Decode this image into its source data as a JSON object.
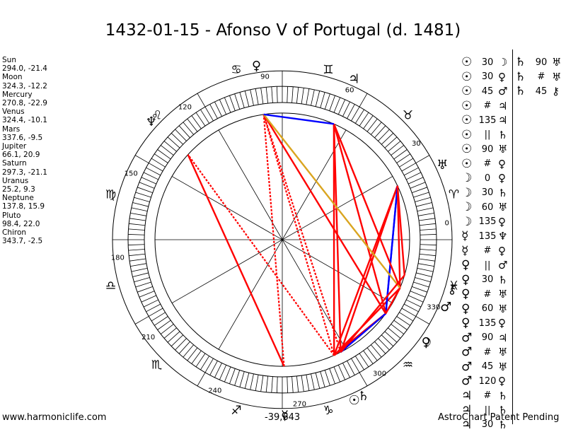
{
  "title": "1432-01-15 - Afonso V of Portugal (d. 1481)",
  "footer": {
    "site": "www.harmoniclife.com",
    "code": "-39,643",
    "note": "AstroChart Patent Pending"
  },
  "colors": {
    "opposition": "#ff0000",
    "square": "#ff0000",
    "trine": "#0000ff",
    "sextile": "#0000ff",
    "semisquare": "#ff0000",
    "sesquisquare": "#ff0000",
    "quincunx": "#daa520",
    "septile": "#ff0000",
    "background": "#ffffff",
    "ink": "#000000"
  },
  "positions": [
    {
      "label": "Sun",
      "coords": "294.0, -21.4"
    },
    {
      "label": "Moon",
      "coords": "324.3, -12.2"
    },
    {
      "label": "Mercury",
      "coords": "270.8, -22.9"
    },
    {
      "label": "Venus",
      "coords": "324.4, -10.1"
    },
    {
      "label": "Mars",
      "coords": "337.6, -9.5"
    },
    {
      "label": "Jupiter",
      "coords": "66.1, 20.9"
    },
    {
      "label": "Saturn",
      "coords": "297.3, -21.1"
    },
    {
      "label": "Uranus",
      "coords": "25.2, 9.3"
    },
    {
      "label": "Neptune",
      "coords": "137.8, 15.9"
    },
    {
      "label": "Pluto",
      "coords": "98.4, 22.0"
    },
    {
      "label": "Chiron",
      "coords": "343.7, -2.5"
    }
  ],
  "aspects_col1": [
    {
      "p1": "☉",
      "angle": "30",
      "p2": "☽"
    },
    {
      "p1": "☉",
      "angle": "30",
      "p2": "♀"
    },
    {
      "p1": "☉",
      "angle": "45",
      "p2": "♂"
    },
    {
      "p1": "☉",
      "angle": "#",
      "p2": "♃"
    },
    {
      "p1": "☉",
      "angle": "135",
      "p2": "♃"
    },
    {
      "p1": "☉",
      "angle": "||",
      "p2": "♄"
    },
    {
      "p1": "☉",
      "angle": "90",
      "p2": "♅"
    },
    {
      "p1": "☉",
      "angle": "#",
      "p2": "♀"
    },
    {
      "p1": "☽",
      "angle": "0",
      "p2": "♀"
    },
    {
      "p1": "☽",
      "angle": "30",
      "p2": "♄"
    },
    {
      "p1": "☽",
      "angle": "60",
      "p2": "♅"
    },
    {
      "p1": "☽",
      "angle": "135",
      "p2": "♀"
    },
    {
      "p1": "☿",
      "angle": "135",
      "p2": "♆"
    },
    {
      "p1": "☿",
      "angle": "#",
      "p2": "♀"
    },
    {
      "p1": "♀",
      "angle": "||",
      "p2": "♂"
    },
    {
      "p1": "♀",
      "angle": "30",
      "p2": "♄"
    },
    {
      "p1": "♀",
      "angle": "#",
      "p2": "♅"
    },
    {
      "p1": "♀",
      "angle": "60",
      "p2": "♅"
    },
    {
      "p1": "♀",
      "angle": "135",
      "p2": "♀"
    },
    {
      "p1": "♂",
      "angle": "90",
      "p2": "♃"
    },
    {
      "p1": "♂",
      "angle": "#",
      "p2": "♅"
    },
    {
      "p1": "♂",
      "angle": "45",
      "p2": "♅"
    },
    {
      "p1": "♂",
      "angle": "120",
      "p2": "♀"
    },
    {
      "p1": "♃",
      "angle": "#",
      "p2": "♄"
    },
    {
      "p1": "♃",
      "angle": "||",
      "p2": "♄"
    },
    {
      "p1": "♃",
      "angle": "30",
      "p2": "♄"
    }
  ],
  "aspects_col2": [
    {
      "p1": "♄",
      "angle": "90",
      "p2": "♅"
    },
    {
      "p1": "♄",
      "angle": "#",
      "p2": "♅"
    },
    {
      "p1": "♄",
      "angle": "45",
      "p2": "⚷"
    }
  ],
  "wheel": {
    "degree_labels": [
      "0",
      "30",
      "60",
      "90",
      "120",
      "150",
      "180",
      "210",
      "240",
      "270",
      "300",
      "330"
    ],
    "zodiac_signs": [
      "♈",
      "♉",
      "♊",
      "♋",
      "♌",
      "♍",
      "♎",
      "♏",
      "♐",
      "♑",
      "♒",
      "♓"
    ],
    "planets": [
      {
        "name": "Sun",
        "glyph": "☉",
        "lon": 294.0
      },
      {
        "name": "Moon",
        "glyph": "☽",
        "lon": 324.3
      },
      {
        "name": "Mercury",
        "glyph": "☿",
        "lon": 270.8
      },
      {
        "name": "Venus",
        "glyph": "♀",
        "lon": 324.4
      },
      {
        "name": "Mars",
        "glyph": "♂",
        "lon": 337.6
      },
      {
        "name": "Jupiter",
        "glyph": "♃",
        "lon": 66.1
      },
      {
        "name": "Saturn",
        "glyph": "♄",
        "lon": 297.3
      },
      {
        "name": "Uranus",
        "glyph": "♅",
        "lon": 25.2
      },
      {
        "name": "Neptune",
        "glyph": "♆",
        "lon": 137.8
      },
      {
        "name": "Pluto",
        "glyph": "♀",
        "lon": 98.4
      },
      {
        "name": "Chiron",
        "glyph": "⚷",
        "lon": 343.7
      }
    ],
    "aspect_lines": [
      {
        "from": "Sun",
        "to": "Jupiter",
        "kind": "square"
      },
      {
        "from": "Sun",
        "to": "Uranus",
        "kind": "square"
      },
      {
        "from": "Sun",
        "to": "Moon",
        "kind": "semisquare"
      },
      {
        "from": "Sun",
        "to": "Venus",
        "kind": "semisquare"
      },
      {
        "from": "Sun",
        "to": "Mars",
        "kind": "semisquare"
      },
      {
        "from": "Sun",
        "to": "Pluto",
        "kind": "septile-dotted"
      },
      {
        "from": "Sun",
        "to": "Neptune",
        "kind": "septile-dotted"
      },
      {
        "from": "Saturn",
        "to": "Pluto",
        "kind": "septile-dotted"
      },
      {
        "from": "Saturn",
        "to": "Jupiter",
        "kind": "square"
      },
      {
        "from": "Saturn",
        "to": "Uranus",
        "kind": "square"
      },
      {
        "from": "Saturn",
        "to": "Moon",
        "kind": "trine"
      },
      {
        "from": "Mercury",
        "to": "Neptune",
        "kind": "sesquisquare"
      },
      {
        "from": "Mercury",
        "to": "Pluto",
        "kind": "septile-dotted"
      },
      {
        "from": "Moon",
        "to": "Uranus",
        "kind": "sextile"
      },
      {
        "from": "Moon",
        "to": "Pluto",
        "kind": "sesquisquare"
      },
      {
        "from": "Venus",
        "to": "Uranus",
        "kind": "sextile"
      },
      {
        "from": "Venus",
        "to": "Jupiter",
        "kind": "square"
      },
      {
        "from": "Mars",
        "to": "Jupiter",
        "kind": "square"
      },
      {
        "from": "Mars",
        "to": "Uranus",
        "kind": "semisquare"
      },
      {
        "from": "Mars",
        "to": "Pluto",
        "kind": "quincunx"
      },
      {
        "from": "Jupiter",
        "to": "Pluto",
        "kind": "trine"
      },
      {
        "from": "Mars",
        "to": "Moon",
        "kind": "semisquare"
      },
      {
        "from": "Chiron",
        "to": "Uranus",
        "kind": "semisquare"
      },
      {
        "from": "Chiron",
        "to": "Saturn",
        "kind": "semisquare"
      }
    ]
  },
  "chart_data": {
    "type": "radial-wheel",
    "title": "1432-01-15 - Afonso V of Portugal (d. 1481)",
    "angle_unit": "degrees ecliptic longitude",
    "ticks": [
      0,
      30,
      60,
      90,
      120,
      150,
      180,
      210,
      240,
      270,
      300,
      330
    ],
    "series": [
      {
        "name": "Sun",
        "lon": 294.0,
        "lat": -21.4
      },
      {
        "name": "Moon",
        "lon": 324.3,
        "lat": -12.2
      },
      {
        "name": "Mercury",
        "lon": 270.8,
        "lat": -22.9
      },
      {
        "name": "Venus",
        "lon": 324.4,
        "lat": -10.1
      },
      {
        "name": "Mars",
        "lon": 337.6,
        "lat": -9.5
      },
      {
        "name": "Jupiter",
        "lon": 66.1,
        "lat": 20.9
      },
      {
        "name": "Saturn",
        "lon": 297.3,
        "lat": -21.1
      },
      {
        "name": "Uranus",
        "lon": 25.2,
        "lat": 9.3
      },
      {
        "name": "Neptune",
        "lon": 137.8,
        "lat": 15.9
      },
      {
        "name": "Pluto",
        "lon": 98.4,
        "lat": 22.0
      },
      {
        "name": "Chiron",
        "lon": 343.7,
        "lat": -2.5
      }
    ]
  }
}
